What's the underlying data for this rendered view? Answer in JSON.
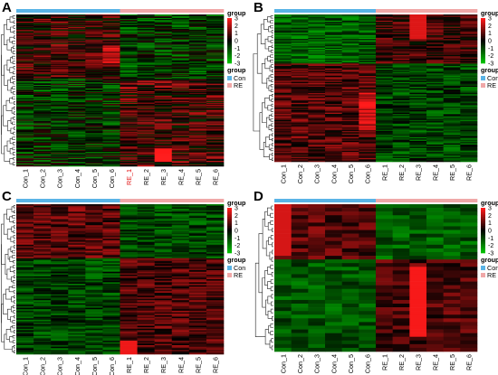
{
  "colors": {
    "con": "#5ab4e6",
    "re": "#f0a8a8",
    "low": "#00c000",
    "mid": "#000000",
    "high": "#ff1a1a"
  },
  "chart_data": [
    {
      "type": "heatmap",
      "panel_label": "A",
      "rows": 170,
      "columns": [
        "Con_1",
        "Con_2",
        "Con_3",
        "Con_4",
        "Con_5",
        "Con_6",
        "RE_1",
        "RE_2",
        "RE_3",
        "RE_4",
        "RE_5",
        "RE_6"
      ],
      "column_groups": [
        "Con",
        "Con",
        "Con",
        "Con",
        "Con",
        "Con",
        "RE",
        "RE",
        "RE",
        "RE",
        "RE",
        "RE"
      ],
      "scale_ticks": [
        3,
        2,
        1,
        0,
        -1,
        -2,
        -3
      ],
      "legend_title": "group",
      "legend_entries": [
        "Con",
        "RE"
      ],
      "highlighted_column": "RE_1",
      "dendrogram": "left"
    },
    {
      "type": "heatmap",
      "panel_label": "B",
      "rows": 120,
      "columns": [
        "Con_1",
        "Con_2",
        "Con_3",
        "Con_4",
        "Con_5",
        "Con_6",
        "RE_1",
        "RE_2",
        "RE_3",
        "RE_4",
        "RE_5",
        "RE_6"
      ],
      "column_groups": [
        "Con",
        "Con",
        "Con",
        "Con",
        "Con",
        "Con",
        "RE",
        "RE",
        "RE",
        "RE",
        "RE",
        "RE"
      ],
      "scale_ticks": [
        3,
        2,
        1,
        0,
        -1,
        -2,
        -3
      ],
      "legend_title": "group",
      "legend_entries": [
        "Con",
        "RE"
      ],
      "dendrogram": "left"
    },
    {
      "type": "heatmap",
      "panel_label": "C",
      "rows": 100,
      "columns": [
        "Con_1",
        "Con_2",
        "Con_3",
        "Con_4",
        "Con_5",
        "Con_6",
        "RE_1",
        "RE_2",
        "RE_3",
        "RE_4",
        "RE_5",
        "RE_6"
      ],
      "column_groups": [
        "Con",
        "Con",
        "Con",
        "Con",
        "Con",
        "Con",
        "RE",
        "RE",
        "RE",
        "RE",
        "RE",
        "RE"
      ],
      "scale_ticks": [
        3,
        2,
        1,
        0,
        -1,
        -2,
        -3
      ],
      "legend_title": "group",
      "legend_entries": [
        "Con",
        "RE"
      ],
      "dendrogram": "left"
    },
    {
      "type": "heatmap",
      "panel_label": "D",
      "rows": 40,
      "columns": [
        "Con_1",
        "Con_2",
        "Con_3",
        "Con_4",
        "Con_5",
        "Con_6",
        "RE_1",
        "RE_2",
        "RE_3",
        "RE_4",
        "RE_5",
        "RE_6"
      ],
      "column_groups": [
        "Con",
        "Con",
        "Con",
        "Con",
        "Con",
        "Con",
        "RE",
        "RE",
        "RE",
        "RE",
        "RE",
        "RE"
      ],
      "scale_ticks": [
        3,
        2,
        1,
        0,
        -1,
        -2,
        -3
      ],
      "legend_title": "group",
      "legend_entries": [
        "Con",
        "RE"
      ],
      "dendrogram": "left"
    }
  ]
}
